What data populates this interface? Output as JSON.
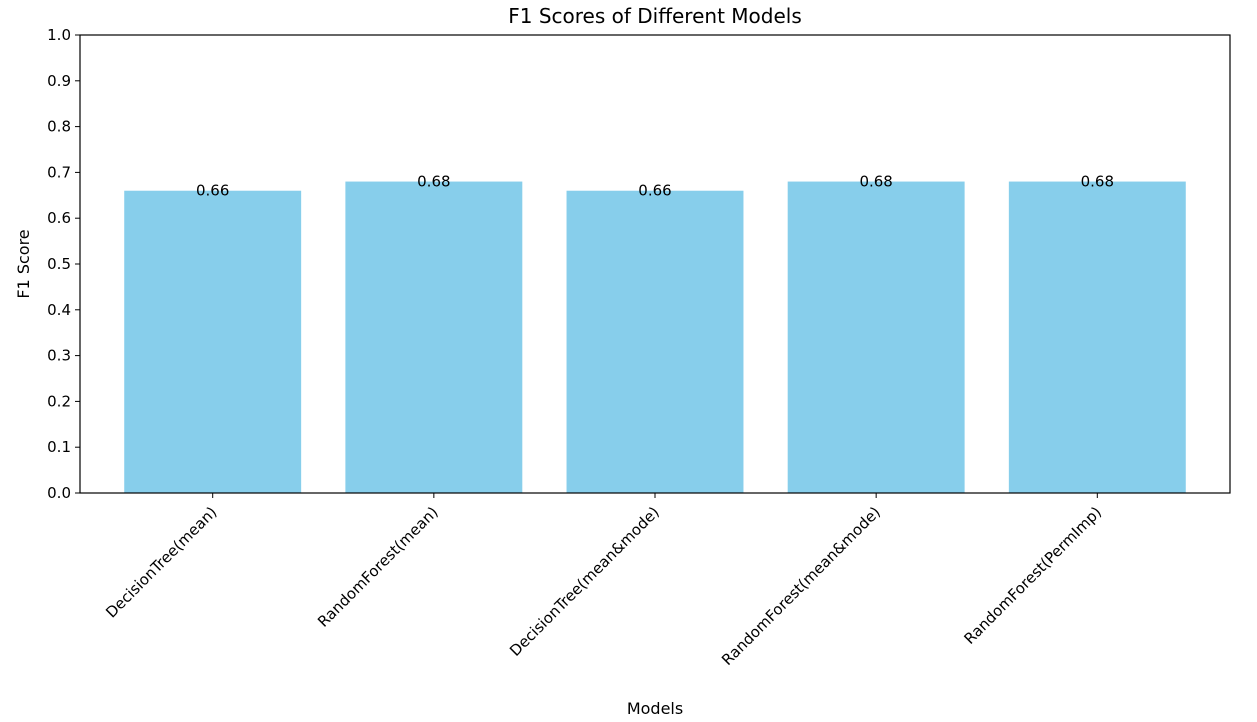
{
  "chart_data": {
    "type": "bar",
    "title": "F1 Scores of Different Models",
    "xlabel": "Models",
    "ylabel": "F1 Score",
    "categories": [
      "DecisionTree(mean)",
      "RandomForest(mean)",
      "DecisionTree(mean&mode)",
      "RandomForest(mean&mode)",
      "RandomForest(PermImp)"
    ],
    "values": [
      0.66,
      0.68,
      0.66,
      0.68,
      0.68
    ],
    "value_labels": [
      "0.66",
      "0.68",
      "0.66",
      "0.68",
      "0.68"
    ],
    "ylim": [
      0,
      1.0
    ],
    "yticks": [
      "0.0",
      "0.1",
      "0.2",
      "0.3",
      "0.4",
      "0.5",
      "0.6",
      "0.7",
      "0.8",
      "0.9",
      "1.0"
    ],
    "bar_color": "#87ceeb",
    "grid": false,
    "legend": "none"
  }
}
